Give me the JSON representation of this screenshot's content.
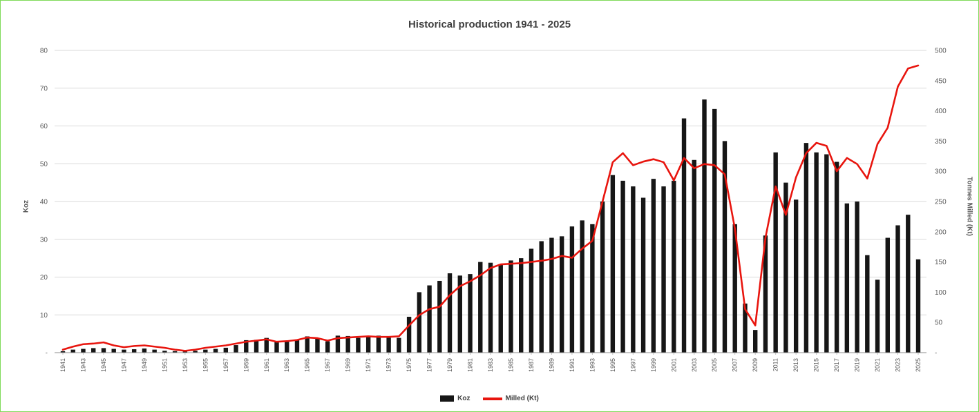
{
  "chart_data": {
    "type": "combo",
    "title": "Historical production 1941 - 2025",
    "legend_position": "bottom",
    "grid": true,
    "categories": [
      "1941",
      "1942",
      "1943",
      "1944",
      "1945",
      "1946",
      "1947",
      "1948",
      "1949",
      "1950",
      "1951",
      "1952",
      "1953",
      "1954",
      "1955",
      "1956",
      "1957",
      "1958",
      "1959",
      "1960",
      "1961",
      "1962",
      "1963",
      "1964",
      "1965",
      "1966",
      "1967",
      "1968",
      "1969",
      "1970",
      "1971",
      "1972",
      "1973",
      "1974",
      "1975",
      "1976",
      "1977",
      "1978",
      "1979",
      "1980",
      "1981",
      "1982",
      "1983",
      "1984",
      "1985",
      "1986",
      "1987",
      "1988",
      "1989",
      "1990",
      "1991",
      "1992",
      "1993",
      "1994",
      "1995",
      "1996",
      "1997",
      "1998",
      "1999",
      "2000",
      "2001",
      "2002",
      "2003",
      "2004",
      "2005",
      "2006",
      "2007",
      "2008",
      "2009",
      "2010",
      "2011",
      "2012",
      "2013",
      "2014",
      "2015",
      "2016",
      "2017",
      "2018",
      "2019",
      "2020",
      "2021",
      "2022",
      "2023",
      "2024",
      "2025"
    ],
    "series": [
      {
        "name": "Koz",
        "type": "bar",
        "axis": "left",
        "color": "#161616",
        "values": [
          0.4,
          0.8,
          1.0,
          1.2,
          1.2,
          1.0,
          0.8,
          0.9,
          1.1,
          0.8,
          0.5,
          0.4,
          0.3,
          0.5,
          0.8,
          1.0,
          1.3,
          2.0,
          3.3,
          3.4,
          3.9,
          3.0,
          2.9,
          3.4,
          4.3,
          3.9,
          3.0,
          4.5,
          4.4,
          3.9,
          4.4,
          4.5,
          4.0,
          3.9,
          9.5,
          16.0,
          17.8,
          19.0,
          21.0,
          20.4,
          20.8,
          24.0,
          23.8,
          23.4,
          24.4,
          25.0,
          27.5,
          29.5,
          30.4,
          30.8,
          33.4,
          35.0,
          34.0,
          40.0,
          47.0,
          45.5,
          44.0,
          41.0,
          46.0,
          44.0,
          45.5,
          62.0,
          51.0,
          67.0,
          64.5,
          56.0,
          34.0,
          13.0,
          6.0,
          31.0,
          53.0,
          45.0,
          40.5,
          55.5,
          53.0,
          52.5,
          50.5,
          39.5,
          40.0,
          25.8,
          19.3,
          30.4,
          33.7,
          36.5,
          24.7
        ]
      },
      {
        "name": "Milled (Kt)",
        "type": "line",
        "axis": "right",
        "color": "#e8150e",
        "values": [
          5,
          10,
          14,
          15,
          17,
          12,
          9,
          11,
          12,
          10,
          8,
          5,
          3,
          5,
          8,
          10,
          12,
          15,
          18,
          20,
          22,
          18,
          19,
          21,
          25,
          24,
          20,
          24,
          25,
          26,
          27,
          26,
          26,
          27,
          45,
          62,
          72,
          76,
          95,
          110,
          118,
          128,
          140,
          146,
          147,
          148,
          150,
          152,
          155,
          160,
          157,
          172,
          185,
          250,
          315,
          330,
          310,
          316,
          320,
          315,
          285,
          322,
          305,
          312,
          310,
          295,
          205,
          72,
          45,
          190,
          275,
          228,
          290,
          330,
          347,
          342,
          300,
          322,
          312,
          288,
          345,
          372,
          440,
          470,
          475
        ]
      }
    ],
    "left_axis": {
      "label": "Koz",
      "min": 0,
      "max": 80,
      "step": 10,
      "zero_label": "-"
    },
    "right_axis": {
      "label": "Tonnes Milled (Kt)",
      "min": 0,
      "max": 500,
      "step": 50,
      "zero_label": "-"
    },
    "x_axis": {
      "tick_every": 2,
      "tick_label_rotation": -90
    }
  },
  "frame": {
    "background": "#ffffff",
    "border_color": "#7ed957",
    "gridline_color": "#d9d9d9",
    "axis_text_color": "#595959"
  }
}
